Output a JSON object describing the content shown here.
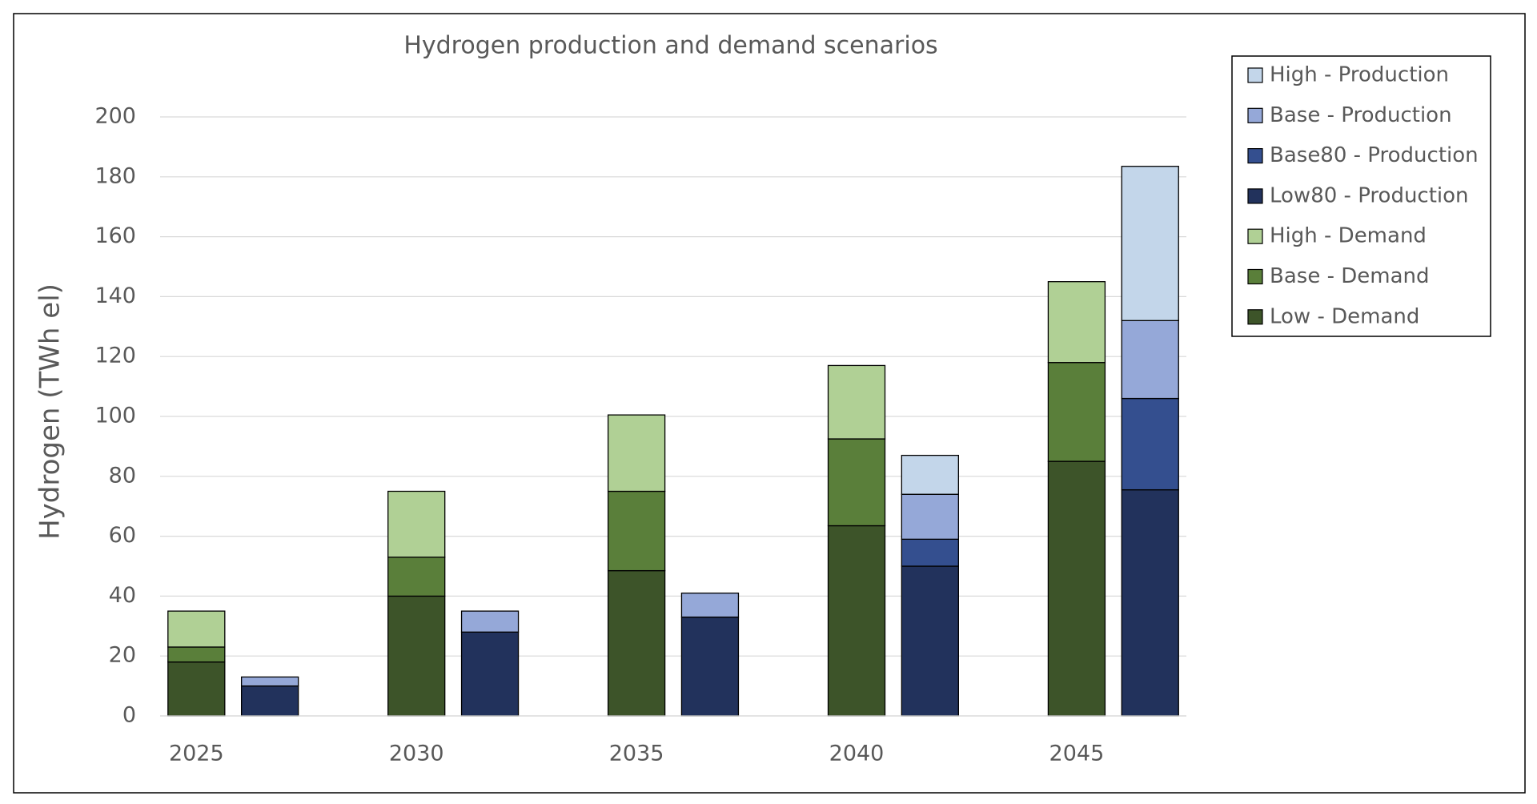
{
  "chart_data": {
    "type": "stacked-bar",
    "title": "Hydrogen production and demand scenarios",
    "y_label": "Hydrogen (TWh el)",
    "categories": [
      "2025",
      "2030",
      "2035",
      "2040",
      "2045"
    ],
    "ylim": [
      0,
      200
    ],
    "yticks": [
      0,
      20,
      40,
      60,
      80,
      100,
      120,
      140,
      160,
      180,
      200
    ],
    "grid": true,
    "legend": "top-right",
    "series": [
      {
        "name": "High - Production",
        "stack": "production",
        "color": "#c3d6ea",
        "values": [
          0,
          0,
          0,
          13,
          51.5
        ]
      },
      {
        "name": "Base - Production",
        "stack": "production",
        "color": "#95a8d8",
        "values": [
          3,
          7,
          8,
          15,
          26
        ]
      },
      {
        "name": "Base80 - Production",
        "stack": "production",
        "color": "#344f8f",
        "values": [
          0,
          0,
          0,
          9,
          30.5
        ]
      },
      {
        "name": "Low80 - Production",
        "stack": "production",
        "color": "#22325c",
        "values": [
          10,
          28,
          33,
          50,
          75.5
        ]
      },
      {
        "name": "High - Demand",
        "stack": "demand",
        "color": "#b0d095",
        "values": [
          12,
          22,
          25.5,
          24.5,
          27
        ]
      },
      {
        "name": "Base - Demand",
        "stack": "demand",
        "color": "#5a7f3a",
        "values": [
          5,
          13,
          26.5,
          29,
          33
        ]
      },
      {
        "name": "Low - Demand",
        "stack": "demand",
        "color": "#3d5429",
        "values": [
          18,
          40,
          48.5,
          63.5,
          85
        ]
      }
    ]
  }
}
